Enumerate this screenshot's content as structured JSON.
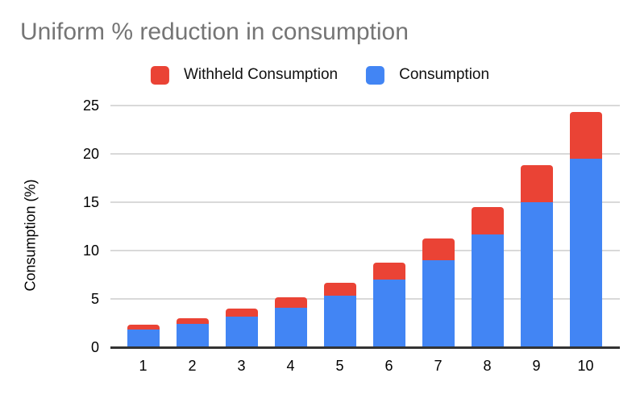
{
  "chart_data": {
    "type": "bar",
    "stacked": true,
    "title": "Uniform % reduction in consumption",
    "xlabel": "",
    "ylabel": "Consumption (%)",
    "categories": [
      "1",
      "2",
      "3",
      "4",
      "5",
      "6",
      "7",
      "8",
      "9",
      "10"
    ],
    "series": [
      {
        "name": "Consumption",
        "color": "#4285F4",
        "values": [
          1.85,
          2.4,
          3.2,
          4.1,
          5.3,
          7.0,
          9.0,
          11.7,
          15.0,
          19.5
        ]
      },
      {
        "name": "Withheld Consumption",
        "color": "#EA4335",
        "values": [
          0.45,
          0.6,
          0.8,
          1.05,
          1.35,
          1.75,
          2.25,
          2.8,
          3.85,
          4.85
        ]
      }
    ],
    "stack_totals": [
      2.3,
      3.0,
      4.0,
      5.15,
      6.65,
      8.75,
      11.25,
      14.5,
      18.85,
      24.35
    ],
    "legend": [
      {
        "label": "Withheld Consumption",
        "color": "#EA4335"
      },
      {
        "label": "Consumption",
        "color": "#4285F4"
      }
    ],
    "legend_position": "top",
    "y_ticks": [
      0,
      5,
      10,
      15,
      20,
      25
    ],
    "ylim": [
      0,
      25
    ],
    "grid": true
  },
  "style_colors": {
    "title_text": "#757575",
    "axis_text": "#000000",
    "gridline": "#d9d9d9",
    "baseline": "#333333",
    "background": "#ffffff"
  }
}
